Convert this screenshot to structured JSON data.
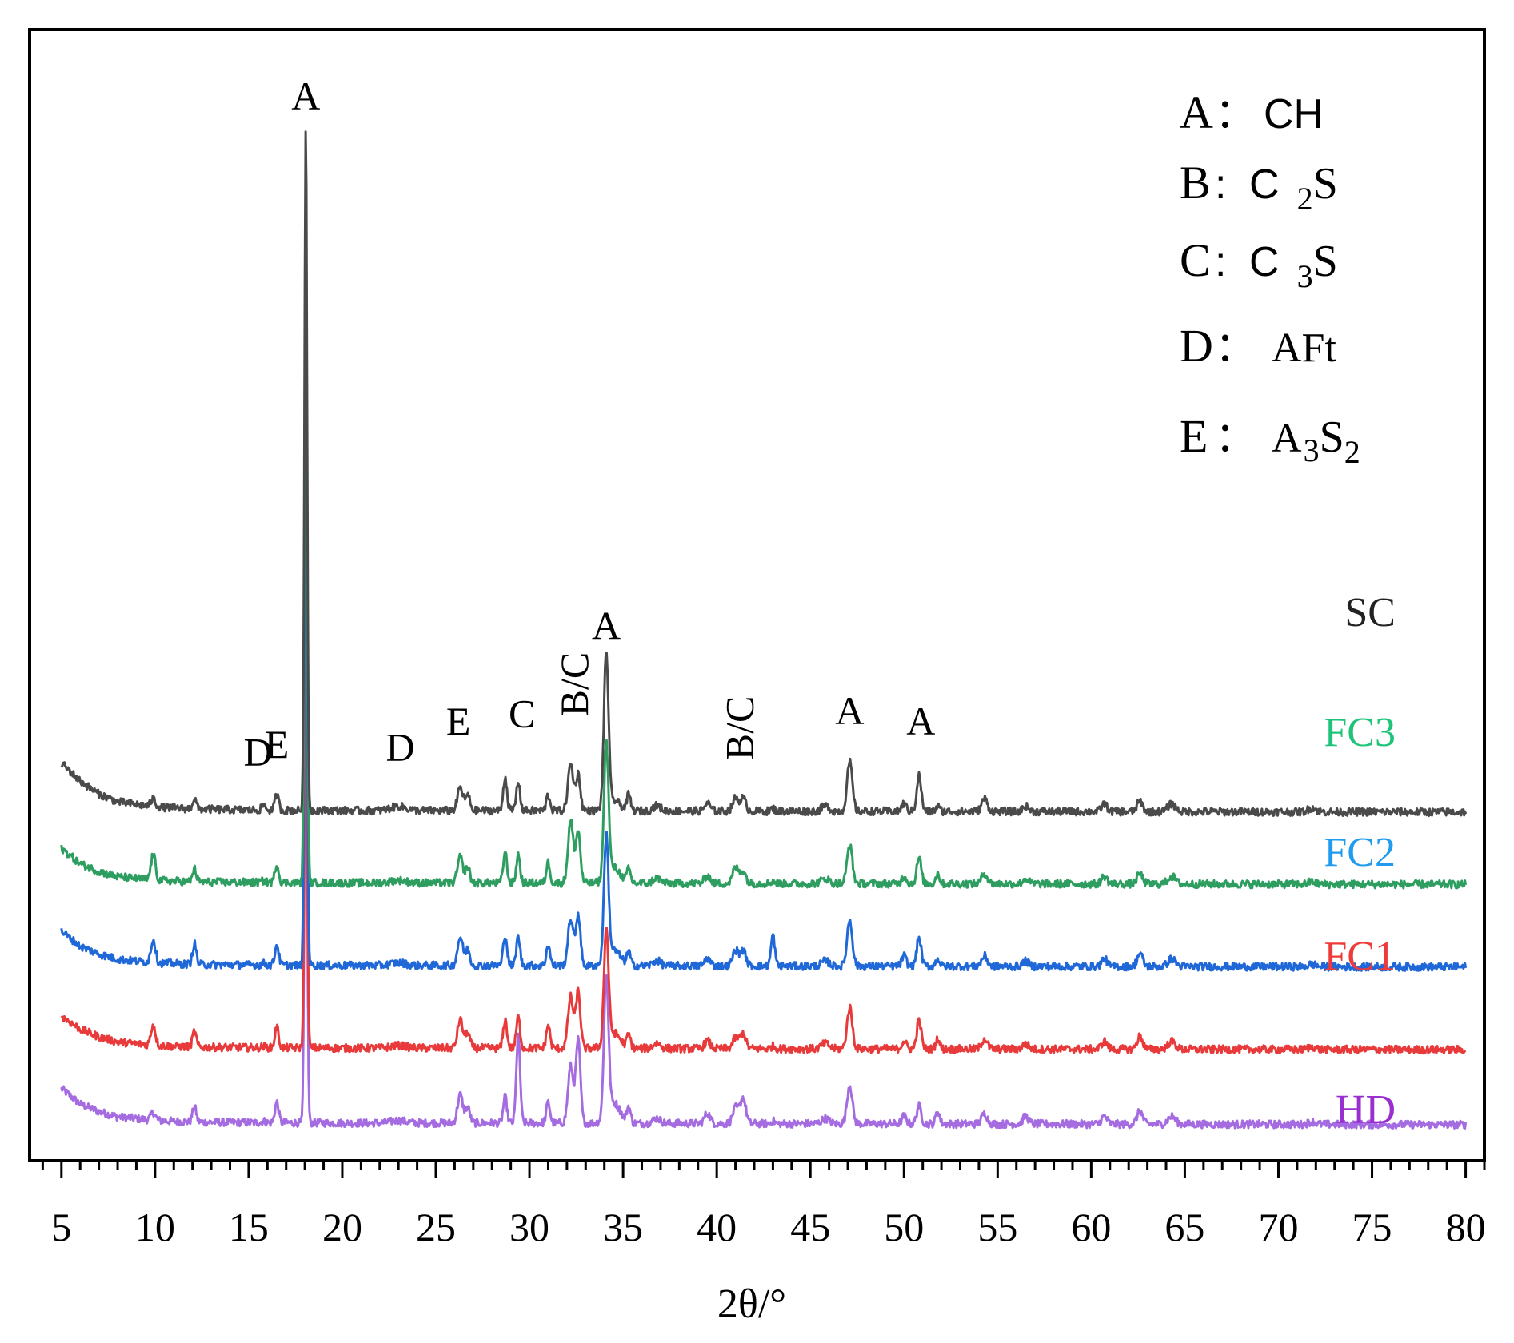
{
  "chart_data": {
    "type": "line",
    "title": "",
    "xlabel": "2θ/°",
    "ylabel": "",
    "xlim": [
      3.3,
      81.0
    ],
    "x_ticks": [
      5,
      10,
      15,
      20,
      25,
      30,
      35,
      40,
      45,
      50,
      55,
      60,
      65,
      70,
      75,
      80
    ],
    "x_tick_labels": [
      "5",
      "10",
      "15",
      "20",
      "25",
      "30",
      "35",
      "40",
      "45",
      "50",
      "55",
      "60",
      "65",
      "70",
      "75",
      "80"
    ],
    "y_ticks_shown": false,
    "series": [
      {
        "name": "HD",
        "color": "#a56be0",
        "label_color": "#9a2fd0",
        "offset": 0.0,
        "base": [
          [
            5,
            7
          ],
          [
            6,
            4
          ],
          [
            7,
            2.5
          ],
          [
            8,
            1.5
          ],
          [
            10,
            0.8
          ],
          [
            12,
            0.5
          ],
          [
            15,
            0.4
          ],
          [
            20,
            0.3
          ],
          [
            30,
            0.3
          ],
          [
            40,
            0.2
          ],
          [
            60,
            0.1
          ],
          [
            80,
            0
          ]
        ]
      },
      {
        "name": "FC1",
        "color": "#e83a3a",
        "label_color": "#ef3a3a",
        "offset": 14.5,
        "base": [
          [
            5,
            6.5
          ],
          [
            6,
            4
          ],
          [
            7,
            2.5
          ],
          [
            8,
            1.5
          ],
          [
            10,
            0.8
          ],
          [
            12,
            0.5
          ],
          [
            15,
            0.4
          ],
          [
            20,
            0.3
          ],
          [
            30,
            0.3
          ],
          [
            40,
            0.2
          ],
          [
            60,
            0.1
          ],
          [
            80,
            0
          ]
        ]
      },
      {
        "name": "FC2",
        "color": "#2068d8",
        "label_color": "#1f9bf0",
        "offset": 30.5,
        "base": [
          [
            5,
            7
          ],
          [
            6,
            4
          ],
          [
            7,
            2.5
          ],
          [
            8,
            1.5
          ],
          [
            10,
            0.8
          ],
          [
            12,
            0.5
          ],
          [
            15,
            0.4
          ],
          [
            20,
            0.3
          ],
          [
            30,
            0.3
          ],
          [
            40,
            0.2
          ],
          [
            60,
            0.1
          ],
          [
            80,
            0
          ]
        ]
      },
      {
        "name": "FC3",
        "color": "#2e9e60",
        "label_color": "#1fc47a",
        "offset": 46.5,
        "base": [
          [
            5,
            7
          ],
          [
            6,
            4
          ],
          [
            7,
            2.5
          ],
          [
            8,
            1.5
          ],
          [
            10,
            0.8
          ],
          [
            12,
            0.5
          ],
          [
            15,
            0.4
          ],
          [
            20,
            0.3
          ],
          [
            30,
            0.3
          ],
          [
            40,
            0.2
          ],
          [
            60,
            0.1
          ],
          [
            80,
            0
          ]
        ]
      },
      {
        "name": "SC",
        "color": "#4a4a4a",
        "label_color": "#222222",
        "offset": 60.5,
        "base": [
          [
            5,
            9.5
          ],
          [
            6,
            6
          ],
          [
            7,
            3.5
          ],
          [
            8,
            2
          ],
          [
            10,
            1
          ],
          [
            12,
            0.6
          ],
          [
            15,
            0.4
          ],
          [
            20,
            0.3
          ],
          [
            30,
            0.3
          ],
          [
            40,
            0.2
          ],
          [
            60,
            0.1
          ],
          [
            80,
            0
          ]
        ]
      }
    ],
    "peaks": [
      {
        "x": 9.9,
        "w": 0.12,
        "h": {
          "HD": 1.5,
          "FC1": 4.0,
          "FC2": 4.5,
          "FC3": 5.0,
          "SC": 1.5
        }
      },
      {
        "x": 12.1,
        "w": 0.1,
        "h": {
          "HD": 3.0,
          "FC1": 3.0,
          "FC2": 4.0,
          "FC3": 2.5,
          "SC": 2.0
        }
      },
      {
        "x": 15.8,
        "w": 0.1,
        "h": {
          "HD": 0.3,
          "FC1": 0.3,
          "FC2": 0.3,
          "FC3": 0.3,
          "SC": 1.0
        }
      },
      {
        "x": 16.5,
        "w": 0.1,
        "h": {
          "HD": 4.0,
          "FC1": 4.0,
          "FC2": 4.0,
          "FC3": 3.5,
          "SC": 3.0
        }
      },
      {
        "x": 18.05,
        "w": 0.07,
        "h": {
          "HD": 93.0,
          "FC1": 88.0,
          "FC2": 118.0,
          "FC3": 132.0,
          "SC": 132.0
        }
      },
      {
        "x": 23.0,
        "w": 0.4,
        "h": {
          "HD": 0.5,
          "FC1": 0.5,
          "FC2": 0.5,
          "FC3": 0.5,
          "SC": 0.8
        }
      },
      {
        "x": 26.3,
        "w": 0.14,
        "h": {
          "HD": 5.5,
          "FC1": 5.5,
          "FC2": 5.5,
          "FC3": 5.0,
          "SC": 4.5
        }
      },
      {
        "x": 26.7,
        "w": 0.12,
        "h": {
          "HD": 3.0,
          "FC1": 3.0,
          "FC2": 3.0,
          "FC3": 3.0,
          "SC": 3.0
        }
      },
      {
        "x": 28.7,
        "w": 0.1,
        "h": {
          "HD": 5.0,
          "FC1": 5.5,
          "FC2": 6.0,
          "FC3": 6.0,
          "SC": 6.5
        }
      },
      {
        "x": 29.4,
        "w": 0.1,
        "h": {
          "HD": 17.0,
          "FC1": 6.0,
          "FC2": 5.5,
          "FC3": 5.5,
          "SC": 5.5
        }
      },
      {
        "x": 31.0,
        "w": 0.1,
        "h": {
          "HD": 4.0,
          "FC1": 4.5,
          "FC2": 4.0,
          "FC3": 4.0,
          "SC": 3.0
        }
      },
      {
        "x": 32.2,
        "w": 0.14,
        "h": {
          "HD": 11.0,
          "FC1": 10.0,
          "FC2": 9.0,
          "FC3": 12.0,
          "SC": 9.0
        }
      },
      {
        "x": 32.6,
        "w": 0.12,
        "h": {
          "HD": 16.0,
          "FC1": 11.0,
          "FC2": 10.0,
          "FC3": 10.0,
          "SC": 7.0
        }
      },
      {
        "x": 34.1,
        "w": 0.12,
        "h": {
          "HD": 27.0,
          "FC1": 22.0,
          "FC2": 24.0,
          "FC3": 26.0,
          "SC": 30.0
        }
      },
      {
        "x": 34.5,
        "w": 0.35,
        "h": {
          "HD": 4.0,
          "FC1": 3.0,
          "FC2": 3.0,
          "FC3": 3.0,
          "SC": 2.0
        }
      },
      {
        "x": 35.3,
        "w": 0.1,
        "h": {
          "HD": 3.0,
          "FC1": 2.5,
          "FC2": 2.5,
          "FC3": 2.5,
          "SC": 3.0
        }
      },
      {
        "x": 36.8,
        "w": 0.2,
        "h": {
          "HD": 1.0,
          "FC1": 1.0,
          "FC2": 1.0,
          "FC3": 1.0,
          "SC": 1.0
        }
      },
      {
        "x": 39.5,
        "w": 0.15,
        "h": {
          "HD": 2.0,
          "FC1": 1.5,
          "FC2": 1.5,
          "FC3": 1.5,
          "SC": 1.5
        }
      },
      {
        "x": 41.0,
        "w": 0.15,
        "h": {
          "HD": 3.0,
          "FC1": 2.0,
          "FC2": 3.0,
          "FC3": 3.0,
          "SC": 2.5
        }
      },
      {
        "x": 41.4,
        "w": 0.15,
        "h": {
          "HD": 5.0,
          "FC1": 3.0,
          "FC2": 3.0,
          "FC3": 2.5,
          "SC": 2.5
        }
      },
      {
        "x": 43.0,
        "w": 0.1,
        "h": {
          "HD": 0.5,
          "FC1": 0.5,
          "FC2": 6.0,
          "FC3": 0.5,
          "SC": 0.5
        }
      },
      {
        "x": 45.8,
        "w": 0.2,
        "h": {
          "HD": 1.0,
          "FC1": 1.0,
          "FC2": 1.0,
          "FC3": 1.0,
          "SC": 1.0
        }
      },
      {
        "x": 47.1,
        "w": 0.14,
        "h": {
          "HD": 7.5,
          "FC1": 8.0,
          "FC2": 9.0,
          "FC3": 7.5,
          "SC": 9.5
        }
      },
      {
        "x": 50.0,
        "w": 0.12,
        "h": {
          "HD": 1.5,
          "FC1": 1.5,
          "FC2": 2.0,
          "FC3": 1.5,
          "SC": 1.5
        }
      },
      {
        "x": 50.8,
        "w": 0.12,
        "h": {
          "HD": 3.5,
          "FC1": 5.5,
          "FC2": 5.5,
          "FC3": 5.0,
          "SC": 7.0
        }
      },
      {
        "x": 51.8,
        "w": 0.1,
        "h": {
          "HD": 2.5,
          "FC1": 2.0,
          "FC2": 1.5,
          "FC3": 2.0,
          "SC": 1.0
        }
      },
      {
        "x": 54.3,
        "w": 0.15,
        "h": {
          "HD": 2.0,
          "FC1": 2.0,
          "FC2": 2.0,
          "FC3": 2.0,
          "SC": 2.5
        }
      },
      {
        "x": 56.5,
        "w": 0.15,
        "h": {
          "HD": 1.5,
          "FC1": 1.0,
          "FC2": 1.0,
          "FC3": 1.0,
          "SC": 1.0
        }
      },
      {
        "x": 60.7,
        "w": 0.15,
        "h": {
          "HD": 1.5,
          "FC1": 1.5,
          "FC2": 1.5,
          "FC3": 1.5,
          "SC": 1.5
        }
      },
      {
        "x": 62.6,
        "w": 0.15,
        "h": {
          "HD": 2.5,
          "FC1": 2.5,
          "FC2": 2.5,
          "FC3": 2.0,
          "SC": 2.0
        }
      },
      {
        "x": 64.3,
        "w": 0.2,
        "h": {
          "HD": 1.5,
          "FC1": 1.5,
          "FC2": 1.5,
          "FC3": 1.5,
          "SC": 1.5
        }
      },
      {
        "x": 71.8,
        "w": 0.2,
        "h": {
          "HD": 0.5,
          "FC1": 0.5,
          "FC2": 0.5,
          "FC3": 0.5,
          "SC": 0.8
        }
      }
    ],
    "peak_annotations": [
      {
        "label": "A",
        "x": 18.05,
        "y": 196.5,
        "rotate": false
      },
      {
        "label": "A",
        "x": 34.1,
        "y": 94.0,
        "rotate": false
      },
      {
        "label": "D",
        "x": 15.5,
        "y": 69.5,
        "rotate": false
      },
      {
        "label": "E",
        "x": 16.5,
        "y": 71.0,
        "rotate": false
      },
      {
        "label": "D",
        "x": 23.1,
        "y": 70.5,
        "rotate": false
      },
      {
        "label": "E",
        "x": 26.2,
        "y": 75.5,
        "rotate": false
      },
      {
        "label": "C",
        "x": 29.6,
        "y": 77.0,
        "rotate": false
      },
      {
        "label": "B/C",
        "x": 32.4,
        "y": 79.0,
        "rotate": true
      },
      {
        "label": "B/C",
        "x": 41.2,
        "y": 70.5,
        "rotate": true
      },
      {
        "label": "A",
        "x": 47.1,
        "y": 77.5,
        "rotate": false
      },
      {
        "label": "A",
        "x": 50.9,
        "y": 75.5,
        "rotate": false
      }
    ],
    "legend_placement": "top-right",
    "phase_legend": [
      {
        "key": "A",
        "sep": "：",
        "phase": "CH"
      },
      {
        "key": "B",
        "sep": ":",
        "phase": "C",
        "sub": "2",
        "rest": "S"
      },
      {
        "key": "C",
        "sep": ":",
        "phase": "C",
        "sub": "3",
        "rest": "S"
      },
      {
        "key": "D",
        "sep": "：",
        "phase": "AFt"
      },
      {
        "key": "E",
        "sep": "：",
        "phase": "A",
        "sub": "3",
        "rest": "S",
        "sub2": "2"
      }
    ]
  }
}
